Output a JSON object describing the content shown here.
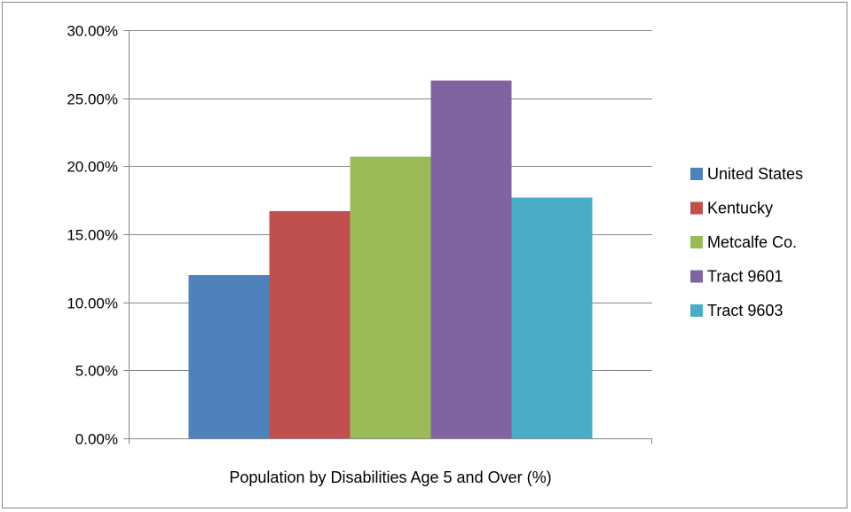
{
  "chart_data": {
    "type": "bar",
    "categories": [
      "Population by Disabilities Age 5 and Over (%)"
    ],
    "series": [
      {
        "name": "United States",
        "values": [
          0.12
        ],
        "color": "#4F81BD"
      },
      {
        "name": "Kentucky",
        "values": [
          0.167
        ],
        "color": "#C0504D"
      },
      {
        "name": "Metcalfe Co.",
        "values": [
          0.207
        ],
        "color": "#9BBB59"
      },
      {
        "name": "Tract 9601",
        "values": [
          0.263
        ],
        "color": "#8064A2"
      },
      {
        "name": "Tract 9603",
        "values": [
          0.177
        ],
        "color": "#4BACC6"
      }
    ],
    "ylim": [
      0,
      0.3
    ],
    "yticks": [
      "0.00%",
      "5.00%",
      "10.00%",
      "15.00%",
      "20.00%",
      "25.00%",
      "30.00%"
    ],
    "grid": true,
    "legend_position": "right"
  }
}
